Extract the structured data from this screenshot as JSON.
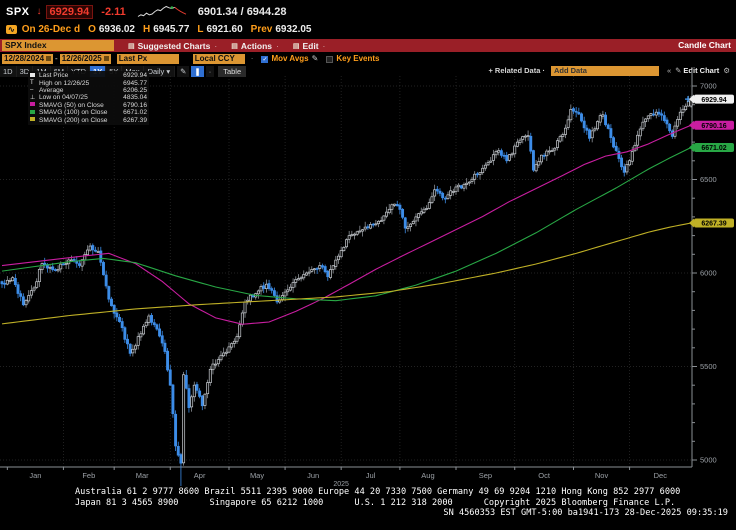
{
  "security": {
    "symbol": "SPX",
    "direction": "down",
    "last": "6929.94",
    "change": "-2.11",
    "range_low": "6901.34",
    "range_high": "6944.28",
    "session_label": "On 26-Dec d",
    "open_label": "O",
    "open": "6936.02",
    "high_label": "H",
    "high": "6945.77",
    "low_label": "L",
    "low": "6921.60",
    "prev_label": "Prev",
    "prev": "6932.05",
    "sparkline": [
      3,
      4,
      3.5,
      5,
      4,
      4.5,
      6,
      7,
      6.5,
      8,
      9,
      8.2,
      7.8,
      8.5,
      7.2,
      6.1,
      5.2,
      4.4
    ]
  },
  "toolbar": {
    "ticker_field": "SPX Index",
    "menus": [
      {
        "label": "Suggested Charts",
        "trail": "·"
      },
      {
        "label": "Actions",
        "trail": "·"
      },
      {
        "label": "Edit",
        "trail": "·"
      }
    ],
    "chart_type_title": "Candle Chart"
  },
  "controls": {
    "date_from": "12/28/2024",
    "date_to": "12/26/2025",
    "px_source": "Last Px",
    "currency": "Local CCY",
    "mov_avgs": {
      "label": "Mov Avgs",
      "checked": true
    },
    "key_events": {
      "label": "Key Events",
      "checked": false
    }
  },
  "periods": {
    "tabs": [
      "1D",
      "3D",
      "1M",
      "6M",
      "YTD",
      "1Y",
      "5Y",
      "Max"
    ],
    "active": "1Y",
    "frequency": "Daily",
    "caret": "▾",
    "table_label": "Table",
    "related_data": "+ Related Data ·",
    "add_data_value": "Add Data",
    "collapse_icon": "«",
    "edit_icon": "✎",
    "edit_chart_label": "Edit Chart",
    "gear_icon": "⚙"
  },
  "legend": {
    "rows": [
      {
        "marker": "square",
        "color": "#e8e8e8",
        "label": "Last Price",
        "value": "6929.94"
      },
      {
        "marker": "T",
        "color": "#e8e8e8",
        "label": "High on 12/26/25",
        "value": "6945.77"
      },
      {
        "marker": "dash",
        "color": "#9a9a9a",
        "label": "Average",
        "value": "6206.25"
      },
      {
        "marker": "L",
        "color": "#e8e8e8",
        "label": "Low on 04/07/25",
        "value": "4835.04"
      },
      {
        "marker": "square",
        "color": "#c81ea0",
        "label": "SMAVG (50)  on Close",
        "value": "6790.16"
      },
      {
        "marker": "square",
        "color": "#28a745",
        "label": "SMAVG (100) on Close",
        "value": "6671.02"
      },
      {
        "marker": "square",
        "color": "#bfb026",
        "label": "SMAVG (200) on Close",
        "value": "6267.39"
      }
    ]
  },
  "chart_data": {
    "type": "candlestick",
    "title": "SPX Index 1Y daily candle chart",
    "ylim": [
      5000,
      7000
    ],
    "y_major_ticks": [
      5000,
      5500,
      6000,
      6500,
      7000
    ],
    "y_minor_step": 100,
    "x_months": [
      "Jan",
      "Feb",
      "Mar",
      "Apr",
      "May",
      "Jun",
      "Jul",
      "Aug",
      "Sep",
      "Oct",
      "Nov",
      "Dec"
    ],
    "year_label": "2025",
    "days": 259,
    "month_start_days": [
      2,
      23,
      42,
      63,
      85,
      106,
      127,
      149,
      170,
      192,
      214,
      235
    ],
    "close_anchors": [
      [
        0,
        5942
      ],
      [
        4,
        5975
      ],
      [
        8,
        5830
      ],
      [
        12,
        5920
      ],
      [
        15,
        6050
      ],
      [
        20,
        6015
      ],
      [
        25,
        6070
      ],
      [
        29,
        6040
      ],
      [
        33,
        6144
      ],
      [
        36,
        6115
      ],
      [
        40,
        5860
      ],
      [
        44,
        5740
      ],
      [
        48,
        5570
      ],
      [
        52,
        5675
      ],
      [
        55,
        5770
      ],
      [
        58,
        5700
      ],
      [
        61,
        5580
      ],
      [
        63,
        5400
      ],
      [
        65,
        5075
      ],
      [
        67,
        4983
      ],
      [
        68,
        5456
      ],
      [
        70,
        5280
      ],
      [
        72,
        5400
      ],
      [
        75,
        5290
      ],
      [
        78,
        5485
      ],
      [
        82,
        5560
      ],
      [
        85,
        5605
      ],
      [
        88,
        5660
      ],
      [
        91,
        5845
      ],
      [
        95,
        5890
      ],
      [
        99,
        5940
      ],
      [
        103,
        5845
      ],
      [
        107,
        5910
      ],
      [
        111,
        5970
      ],
      [
        115,
        6005
      ],
      [
        119,
        6040
      ],
      [
        122,
        5980
      ],
      [
        126,
        6090
      ],
      [
        130,
        6200
      ],
      [
        134,
        6225
      ],
      [
        138,
        6260
      ],
      [
        142,
        6280
      ],
      [
        146,
        6365
      ],
      [
        149,
        6340
      ],
      [
        151,
        6240
      ],
      [
        155,
        6300
      ],
      [
        159,
        6345
      ],
      [
        162,
        6445
      ],
      [
        166,
        6395
      ],
      [
        170,
        6460
      ],
      [
        174,
        6480
      ],
      [
        178,
        6530
      ],
      [
        182,
        6590
      ],
      [
        186,
        6655
      ],
      [
        189,
        6600
      ],
      [
        193,
        6700
      ],
      [
        197,
        6735
      ],
      [
        199,
        6550
      ],
      [
        202,
        6630
      ],
      [
        206,
        6655
      ],
      [
        210,
        6740
      ],
      [
        213,
        6875
      ],
      [
        216,
        6850
      ],
      [
        220,
        6720
      ],
      [
        223,
        6810
      ],
      [
        225,
        6846
      ],
      [
        228,
        6724
      ],
      [
        231,
        6612
      ],
      [
        233,
        6538
      ],
      [
        236,
        6650
      ],
      [
        239,
        6770
      ],
      [
        242,
        6840
      ],
      [
        245,
        6860
      ],
      [
        248,
        6815
      ],
      [
        251,
        6730
      ],
      [
        254,
        6860
      ],
      [
        257,
        6920
      ],
      [
        258,
        6929.94
      ]
    ],
    "noise": 16,
    "wick": 26,
    "low_day": 67,
    "stats": {
      "last": 6929.94,
      "high": 6945.77,
      "high_date": "12/26/25",
      "average": 6206.25,
      "low": 4835.04,
      "low_date": "04/07/25"
    },
    "smavg": [
      {
        "name": "SMAVG (50) on Close",
        "color": "#c81ea0",
        "last": 6790.16,
        "anchors": [
          [
            0,
            6040
          ],
          [
            30,
            6090
          ],
          [
            40,
            6105
          ],
          [
            50,
            6050
          ],
          [
            60,
            5955
          ],
          [
            70,
            5835
          ],
          [
            80,
            5760
          ],
          [
            90,
            5726
          ],
          [
            100,
            5738
          ],
          [
            110,
            5795
          ],
          [
            120,
            5862
          ],
          [
            130,
            5940
          ],
          [
            140,
            6020
          ],
          [
            150,
            6092
          ],
          [
            160,
            6162
          ],
          [
            170,
            6232
          ],
          [
            180,
            6302
          ],
          [
            190,
            6382
          ],
          [
            200,
            6452
          ],
          [
            210,
            6522
          ],
          [
            218,
            6580
          ],
          [
            226,
            6625
          ],
          [
            234,
            6648
          ],
          [
            242,
            6690
          ],
          [
            250,
            6742
          ],
          [
            258,
            6790.16
          ]
        ]
      },
      {
        "name": "SMAVG (100) on Close",
        "color": "#28a745",
        "last": 6671.02,
        "anchors": [
          [
            0,
            6010
          ],
          [
            25,
            6060
          ],
          [
            38,
            6078
          ],
          [
            50,
            6055
          ],
          [
            65,
            5985
          ],
          [
            80,
            5925
          ],
          [
            95,
            5880
          ],
          [
            110,
            5862
          ],
          [
            125,
            5852
          ],
          [
            140,
            5878
          ],
          [
            155,
            5935
          ],
          [
            170,
            6010
          ],
          [
            185,
            6105
          ],
          [
            200,
            6215
          ],
          [
            215,
            6340
          ],
          [
            230,
            6455
          ],
          [
            242,
            6555
          ],
          [
            250,
            6615
          ],
          [
            258,
            6671.02
          ]
        ]
      },
      {
        "name": "SMAVG (200) on Close",
        "color": "#bfb026",
        "last": 6267.39,
        "anchors": [
          [
            0,
            5728
          ],
          [
            25,
            5772
          ],
          [
            50,
            5808
          ],
          [
            75,
            5832
          ],
          [
            100,
            5852
          ],
          [
            125,
            5872
          ],
          [
            145,
            5900
          ],
          [
            165,
            5945
          ],
          [
            185,
            6000
          ],
          [
            200,
            6048
          ],
          [
            215,
            6105
          ],
          [
            230,
            6168
          ],
          [
            242,
            6218
          ],
          [
            250,
            6245
          ],
          [
            258,
            6267.39
          ]
        ]
      }
    ],
    "axis_tags": [
      {
        "text": "6929.94",
        "price": 6929.94,
        "bg": "#f0f0f0",
        "fg": "#000000"
      },
      {
        "text": "6790.16",
        "price": 6790.16,
        "bg": "#c81ea0",
        "fg": "#000000"
      },
      {
        "text": "6671.02",
        "price": 6671.02,
        "bg": "#28a745",
        "fg": "#000000"
      },
      {
        "text": "6267.39",
        "price": 6267.39,
        "bg": "#bfb026",
        "fg": "#000000"
      }
    ],
    "last_marker_color": "#4aa3ff",
    "colors": {
      "up": "#c9cdd2",
      "down": "#3d8de8",
      "grid": "#2e2e2e",
      "axis": "#8a8f94",
      "tick_label": "#9ba0a6"
    }
  },
  "footer": {
    "line1": "Australia 61 2 9777 8600 Brazil 5511 2395 9000 Europe 44 20 7330 7500 Germany 49 69 9204 1210 Hong Kong 852 2977 6000",
    "line2": "Japan 81 3 4565 8900      Singapore 65 6212 1000      U.S. 1 212 318 2000      Copyright 2025 Bloomberg Finance L.P.",
    "line3": "SN 4560353 EST  GMT-5:00 ba1941-173 28-Dec-2025 09:35:19"
  }
}
